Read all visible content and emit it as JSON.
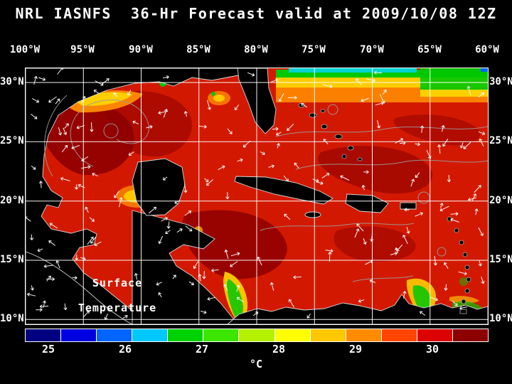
{
  "title": "NRL IASNFS  36-Hr Forecast valid at 2009/10/08 12Z",
  "header": {
    "model": "NRL IASNFS",
    "forecast_hour": "36-Hr",
    "valid_time": "2009/10/08 12Z"
  },
  "map": {
    "annotation": {
      "line1": "Surface",
      "line2": "Temperature"
    },
    "lon_labels": [
      "100°W",
      "95°W",
      "90°W",
      "85°W",
      "80°W",
      "75°W",
      "70°W",
      "65°W",
      "60°W"
    ],
    "lat_labels": [
      "30°N",
      "25°N",
      "20°N",
      "15°N",
      "10°N"
    ]
  },
  "colorbar": {
    "unit": "°C",
    "tick_labels": [
      "25",
      "26",
      "27",
      "28",
      "29",
      "30"
    ],
    "segment_colors": [
      "#000080",
      "#0000e0",
      "#0064ff",
      "#00c8ff",
      "#00d200",
      "#3ce600",
      "#b4f000",
      "#ffff00",
      "#ffc800",
      "#ff8c00",
      "#ff4600",
      "#dc0000",
      "#8c0000"
    ]
  },
  "chart_data": {
    "type": "heatmap",
    "title": "NRL IASNFS 36-Hr Forecast valid at 2009/10/08 12Z",
    "variable": "Surface Temperature",
    "units": "°C",
    "region": "Gulf of Mexico and Caribbean Sea",
    "x_axis": {
      "label": "Longitude",
      "tick_labels": [
        "100°W",
        "95°W",
        "90°W",
        "85°W",
        "80°W",
        "75°W",
        "70°W",
        "65°W",
        "60°W"
      ]
    },
    "y_axis": {
      "label": "Latitude",
      "tick_labels": [
        "30°N",
        "25°N",
        "20°N",
        "15°N",
        "10°N"
      ]
    },
    "grid": true,
    "colorbar": {
      "tick_values": [
        25,
        26,
        27,
        28,
        29,
        30
      ],
      "units": "°C",
      "orientation": "horizontal"
    },
    "overlays": [
      "white surface-current vector arrows",
      "gray isotherm contour lines",
      "black land mask with light coastlines"
    ]
  }
}
